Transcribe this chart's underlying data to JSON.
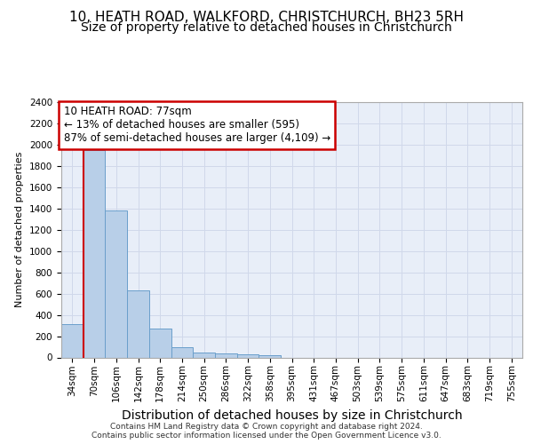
{
  "title1": "10, HEATH ROAD, WALKFORD, CHRISTCHURCH, BH23 5RH",
  "title2": "Size of property relative to detached houses in Christchurch",
  "xlabel": "Distribution of detached houses by size in Christchurch",
  "ylabel": "Number of detached properties",
  "categories": [
    "34sqm",
    "70sqm",
    "106sqm",
    "142sqm",
    "178sqm",
    "214sqm",
    "250sqm",
    "286sqm",
    "322sqm",
    "358sqm",
    "395sqm",
    "431sqm",
    "467sqm",
    "503sqm",
    "539sqm",
    "575sqm",
    "611sqm",
    "647sqm",
    "683sqm",
    "719sqm",
    "755sqm"
  ],
  "values": [
    310,
    1950,
    1380,
    630,
    270,
    100,
    50,
    35,
    30,
    20,
    0,
    0,
    0,
    0,
    0,
    0,
    0,
    0,
    0,
    0,
    0
  ],
  "bar_color": "#b8cfe8",
  "bar_edge_color": "#6a9fcb",
  "highlight_line_color": "#cc0000",
  "annotation_text": "10 HEATH ROAD: 77sqm\n← 13% of detached houses are smaller (595)\n87% of semi-detached houses are larger (4,109) →",
  "annotation_box_color": "#ffffff",
  "annotation_box_edge_color": "#cc0000",
  "ylim": [
    0,
    2400
  ],
  "yticks": [
    0,
    200,
    400,
    600,
    800,
    1000,
    1200,
    1400,
    1600,
    1800,
    2000,
    2200,
    2400
  ],
  "grid_color": "#d0d8ea",
  "background_color": "#e8eef8",
  "footer1": "Contains HM Land Registry data © Crown copyright and database right 2024.",
  "footer2": "Contains public sector information licensed under the Open Government Licence v3.0.",
  "title1_fontsize": 11,
  "title2_fontsize": 10,
  "xlabel_fontsize": 10,
  "ylabel_fontsize": 8,
  "tick_fontsize": 7.5,
  "annotation_fontsize": 8.5,
  "footer_fontsize": 6.5
}
